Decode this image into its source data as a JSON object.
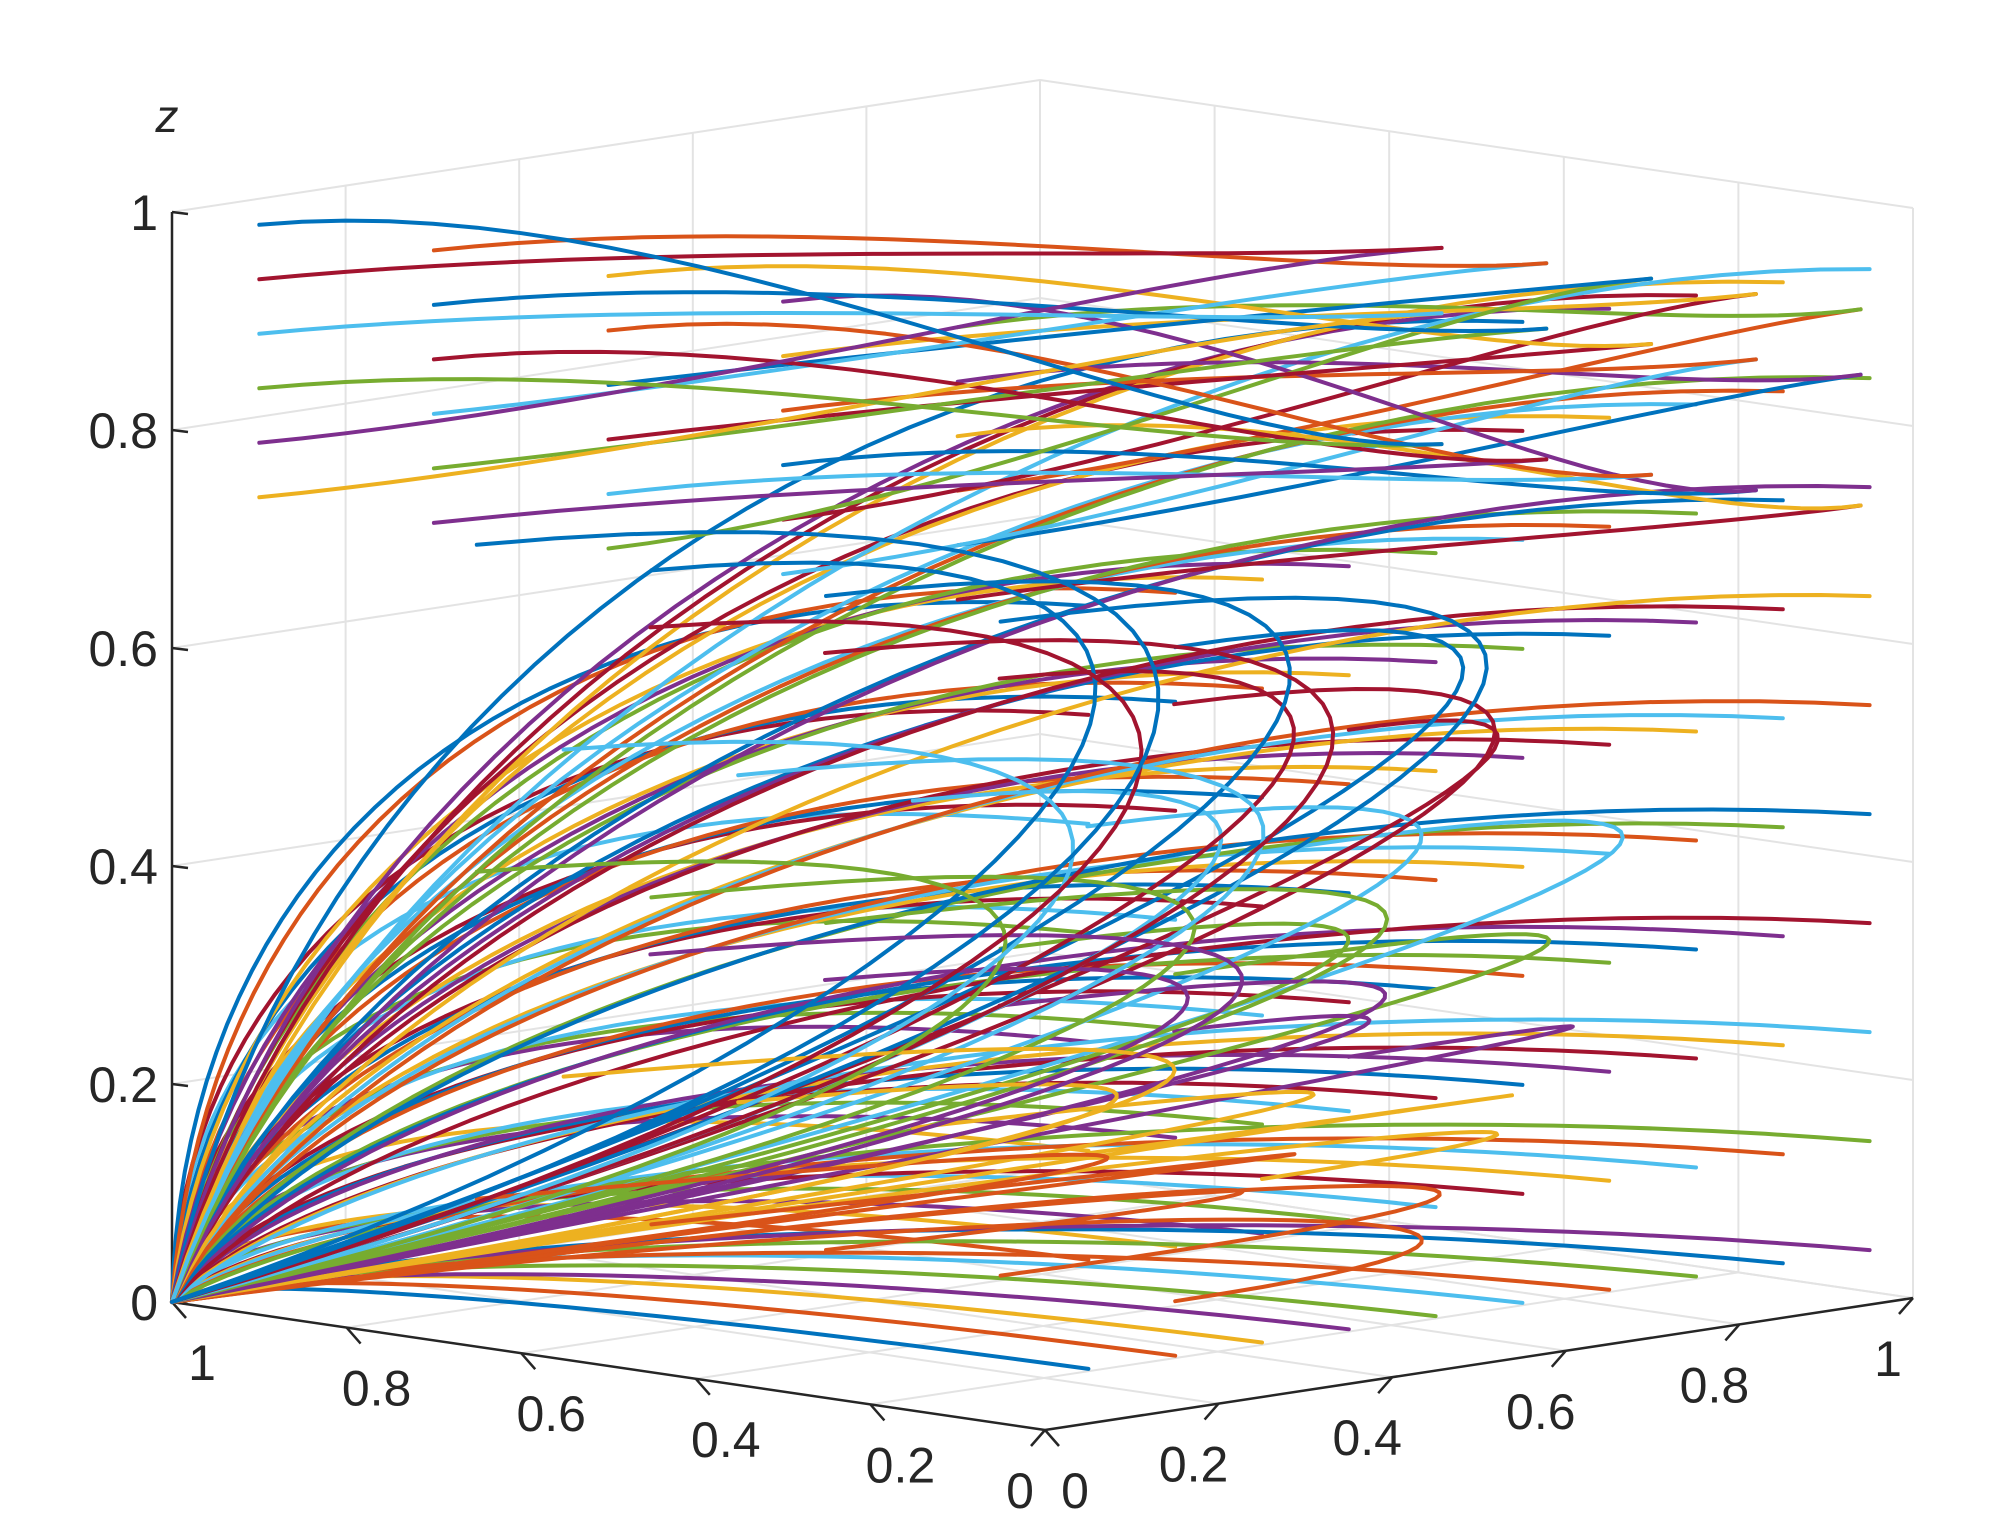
{
  "chart_data": {
    "type": "line",
    "projection": "3d",
    "title": "",
    "xlabel": "",
    "ylabel": "",
    "zlabel": "z",
    "xlim": [
      0,
      1
    ],
    "ylim": [
      0,
      1
    ],
    "zlim": [
      0,
      1
    ],
    "x_ticks": [
      "0",
      "0.2",
      "0.4",
      "0.6",
      "0.8",
      "1"
    ],
    "y_ticks": [
      "0",
      "0.2",
      "0.4",
      "0.6",
      "0.8",
      "1"
    ],
    "z_ticks": [
      "0",
      "0.2",
      "0.4",
      "0.6",
      "0.8",
      "1"
    ],
    "grid": true,
    "legend": "none",
    "color_order": [
      "#0072BD",
      "#D95319",
      "#EDB120",
      "#7E2F8E",
      "#77AC30",
      "#4DBEEE",
      "#A2142F"
    ],
    "families": {
      "left_face_starts": {
        "description_of_start": "x = 0, y from 0 to 1, z from 0 to 1",
        "endpoint": [
          1,
          0,
          0
        ],
        "y_starts": [
          0.05,
          0.15,
          0.25,
          0.35,
          0.45,
          0.55,
          0.65,
          0.75,
          0.85,
          0.95
        ],
        "z_starts": [
          0.05,
          0.15,
          0.25,
          0.35,
          0.45,
          0.55,
          0.65,
          0.75,
          0.85,
          0.95
        ]
      },
      "high_z_starts": {
        "endpoint_z": [
          0.72,
          0.84,
          0.9
        ],
        "x_starts": [
          0.1,
          0.3,
          0.5,
          0.7,
          0.9
        ],
        "z_starts": [
          0.75,
          0.8,
          0.85,
          0.9,
          0.95,
          1.0
        ]
      },
      "right_face_loops": {
        "endpoint": [
          1,
          0,
          0
        ],
        "x_starts": [
          0.0,
          0.2,
          0.4,
          0.6,
          0.8
        ],
        "z_starts": [
          0.1,
          0.2,
          0.3,
          0.4,
          0.5,
          0.6,
          0.7
        ]
      }
    }
  }
}
